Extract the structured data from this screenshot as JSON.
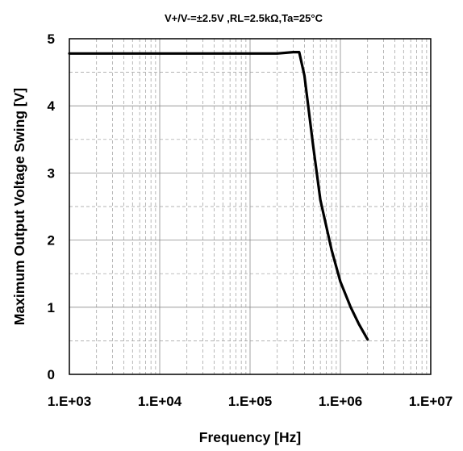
{
  "chart_data": {
    "type": "line",
    "title": "V+/V-=±2.5V ,RL=2.5kΩ,Ta=25°C",
    "xlabel": "Frequency [Hz]",
    "ylabel": "Maximum Output Voltage Swing [V]",
    "x_scale": "log",
    "xlim": [
      1000,
      10000000
    ],
    "ylim": [
      0,
      5
    ],
    "grid": true,
    "x_ticks": [
      {
        "value": 1000,
        "label": "1.E+03"
      },
      {
        "value": 10000,
        "label": "1.E+04"
      },
      {
        "value": 100000,
        "label": "1.E+05"
      },
      {
        "value": 1000000,
        "label": "1.E+06"
      },
      {
        "value": 10000000,
        "label": "1.E+07"
      }
    ],
    "y_ticks": [
      {
        "value": 0,
        "label": "0"
      },
      {
        "value": 1,
        "label": "1"
      },
      {
        "value": 2,
        "label": "2"
      },
      {
        "value": 3,
        "label": "3"
      },
      {
        "value": 4,
        "label": "4"
      },
      {
        "value": 5,
        "label": "5"
      }
    ],
    "series": [
      {
        "color": "#000000",
        "points": [
          {
            "x": 1000,
            "y": 4.78
          },
          {
            "x": 10000,
            "y": 4.78
          },
          {
            "x": 100000,
            "y": 4.78
          },
          {
            "x": 200000,
            "y": 4.78
          },
          {
            "x": 300000,
            "y": 4.8
          },
          {
            "x": 350000,
            "y": 4.8
          },
          {
            "x": 400000,
            "y": 4.45
          },
          {
            "x": 500000,
            "y": 3.4
          },
          {
            "x": 600000,
            "y": 2.6
          },
          {
            "x": 800000,
            "y": 1.85
          },
          {
            "x": 1000000,
            "y": 1.38
          },
          {
            "x": 1300000,
            "y": 1.0
          },
          {
            "x": 1600000,
            "y": 0.75
          },
          {
            "x": 2000000,
            "y": 0.52
          }
        ]
      }
    ]
  }
}
